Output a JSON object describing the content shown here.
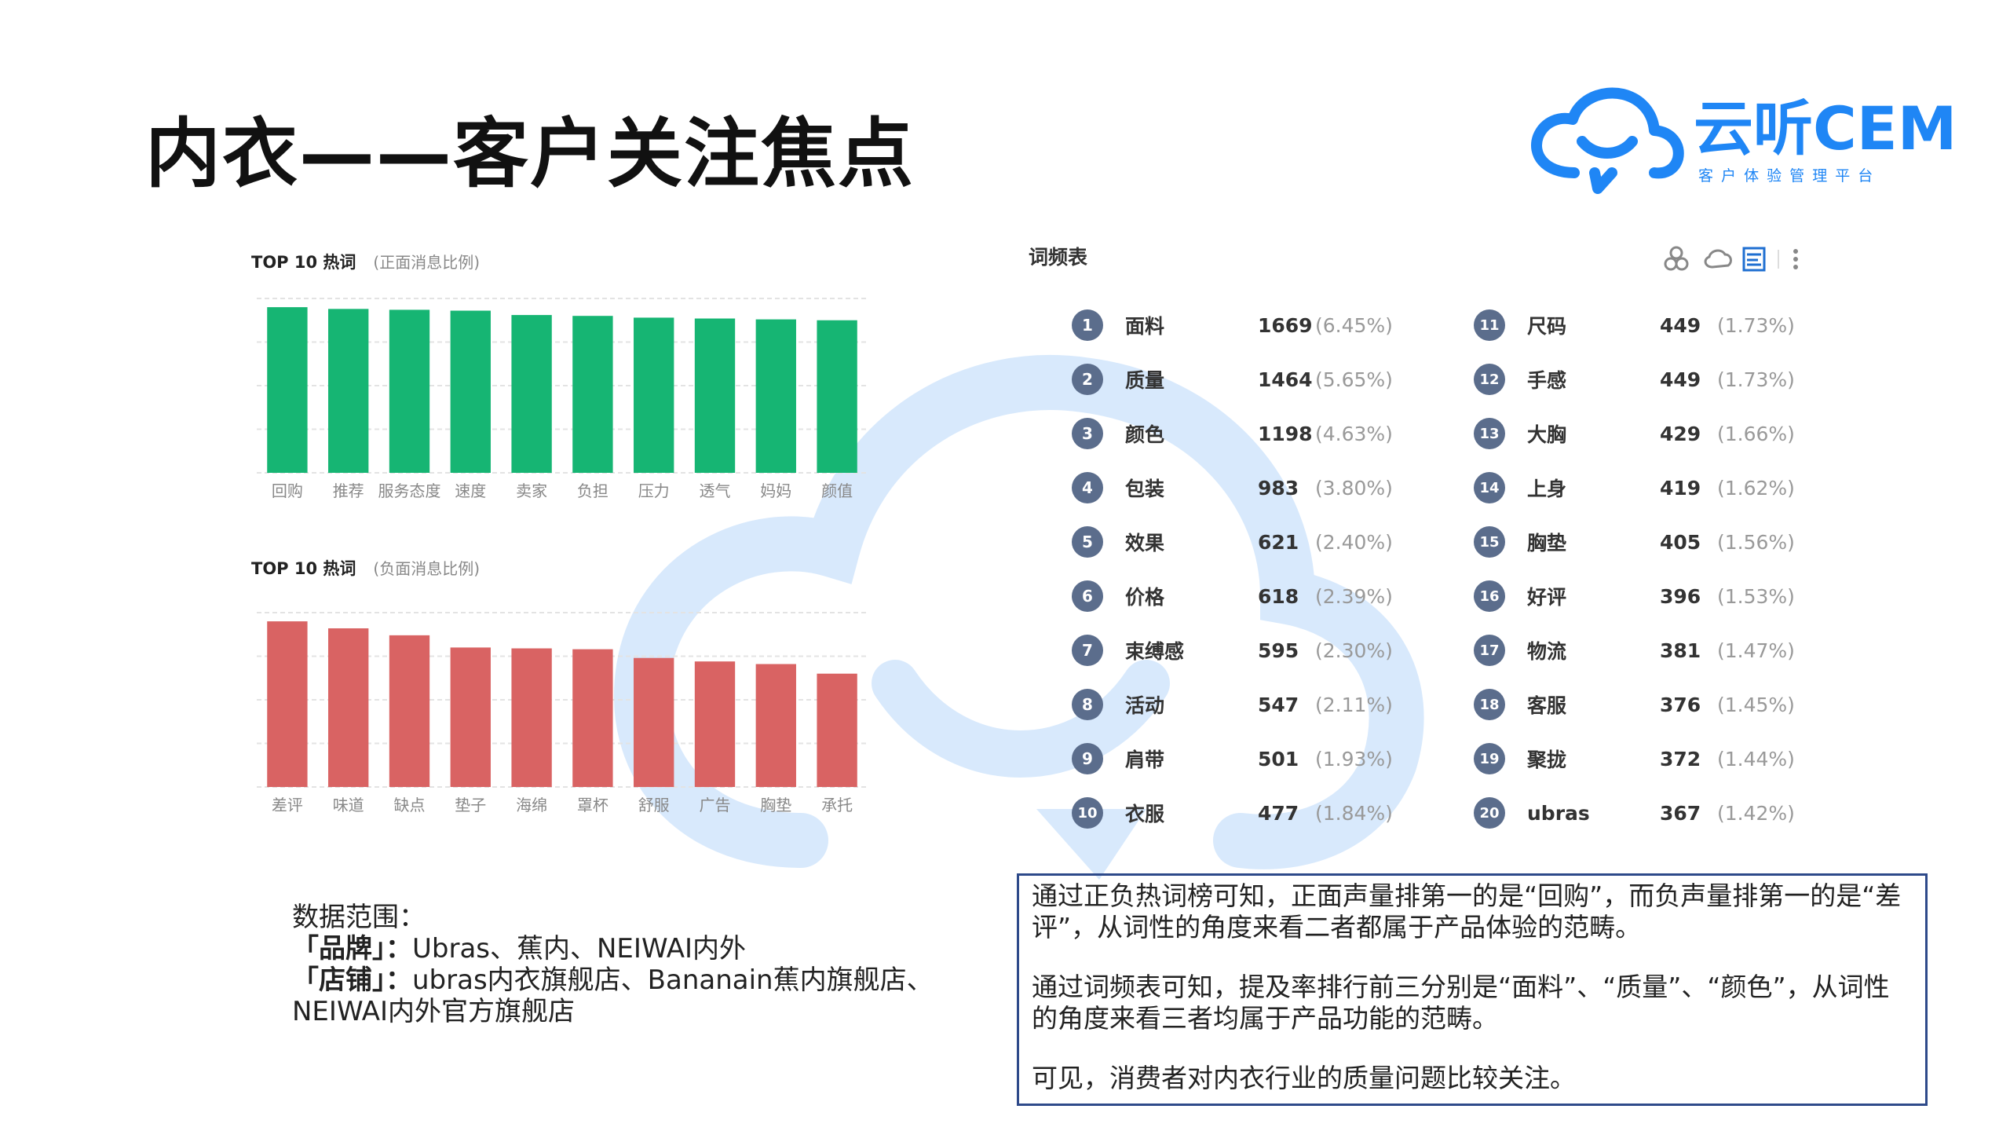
{
  "title": "内衣——客户关注焦点",
  "logo": {
    "text": "云听CEM",
    "subtitle": "客 户 体 验 管 理 平 台",
    "color": "#1f86f5"
  },
  "colors": {
    "positive": "#16b573",
    "negative": "#d96363",
    "rank_badge": "#5b6d8c"
  },
  "chart_data": [
    {
      "type": "bar",
      "title": "TOP 10 热词",
      "subtitle": "(正面消息比例)",
      "categories": [
        "回购",
        "推荐",
        "服务态度",
        "速度",
        "卖家",
        "负担",
        "压力",
        "透气",
        "妈妈",
        "颜值"
      ],
      "values": [
        0.95,
        0.94,
        0.935,
        0.93,
        0.905,
        0.9,
        0.89,
        0.885,
        0.88,
        0.875
      ],
      "ylim": [
        0,
        1
      ],
      "grid": true,
      "color": "#16b573"
    },
    {
      "type": "bar",
      "title": "TOP 10 热词",
      "subtitle": "(负面消息比例)",
      "categories": [
        "差评",
        "味道",
        "缺点",
        "垫子",
        "海绵",
        "罩杯",
        "舒服",
        "广告",
        "胸垫",
        "承托"
      ],
      "values": [
        0.95,
        0.91,
        0.87,
        0.8,
        0.795,
        0.79,
        0.74,
        0.72,
        0.705,
        0.65
      ],
      "ylim": [
        0,
        1
      ],
      "grid": true,
      "color": "#d96363"
    },
    {
      "type": "table",
      "title": "词频表",
      "rows": [
        {
          "rank": "1",
          "word": "面料",
          "count": "1669",
          "pct": "(6.45%)"
        },
        {
          "rank": "2",
          "word": "质量",
          "count": "1464",
          "pct": "(5.65%)"
        },
        {
          "rank": "3",
          "word": "颜色",
          "count": "1198",
          "pct": "(4.63%)"
        },
        {
          "rank": "4",
          "word": "包装",
          "count": "983",
          "pct": "(3.80%)"
        },
        {
          "rank": "5",
          "word": "效果",
          "count": "621",
          "pct": "(2.40%)"
        },
        {
          "rank": "6",
          "word": "价格",
          "count": "618",
          "pct": "(2.39%)"
        },
        {
          "rank": "7",
          "word": "束缚感",
          "count": "595",
          "pct": "(2.30%)"
        },
        {
          "rank": "8",
          "word": "活动",
          "count": "547",
          "pct": "(2.11%)"
        },
        {
          "rank": "9",
          "word": "肩带",
          "count": "501",
          "pct": "(1.93%)"
        },
        {
          "rank": "10",
          "word": "衣服",
          "count": "477",
          "pct": "(1.84%)"
        },
        {
          "rank": "11",
          "word": "尺码",
          "count": "449",
          "pct": "(1.73%)"
        },
        {
          "rank": "12",
          "word": "手感",
          "count": "449",
          "pct": "(1.73%)"
        },
        {
          "rank": "13",
          "word": "大胸",
          "count": "429",
          "pct": "(1.66%)"
        },
        {
          "rank": "14",
          "word": "上身",
          "count": "419",
          "pct": "(1.62%)"
        },
        {
          "rank": "15",
          "word": "胸垫",
          "count": "405",
          "pct": "(1.56%)"
        },
        {
          "rank": "16",
          "word": "好评",
          "count": "396",
          "pct": "(1.53%)"
        },
        {
          "rank": "17",
          "word": "物流",
          "count": "381",
          "pct": "(1.47%)"
        },
        {
          "rank": "18",
          "word": "客服",
          "count": "376",
          "pct": "(1.45%)"
        },
        {
          "rank": "19",
          "word": "聚拢",
          "count": "372",
          "pct": "(1.44%)"
        },
        {
          "rank": "20",
          "word": "ubras",
          "count": "367",
          "pct": "(1.42%)"
        }
      ]
    }
  ],
  "toolbar_icons": [
    "cluster-icon",
    "cloud-icon",
    "table-view-icon",
    "more-icon"
  ],
  "scope": {
    "heading": "数据范围：",
    "brand_label": "「品牌」：",
    "brand_value": "Ubras、蕉内、NEIWAI内外",
    "store_label": "「店铺」：",
    "store_value": "ubras内衣旗舰店、Bananain蕉内旗舰店、",
    "store_value2": "NEIWAI内外官方旗舰店"
  },
  "summary": {
    "p1": "通过正负热词榜可知，正面声量排第一的是“回购”，而负声量排第一的是“差评”，从词性的角度来看二者都属于产品体验的范畴。",
    "p2": "通过词频表可知，提及率排行前三分别是“面料”、“质量”、“颜色”，从词性的角度来看三者均属于产品功能的范畴。",
    "p3": "可见，消费者对内衣行业的质量问题比较关注。"
  }
}
